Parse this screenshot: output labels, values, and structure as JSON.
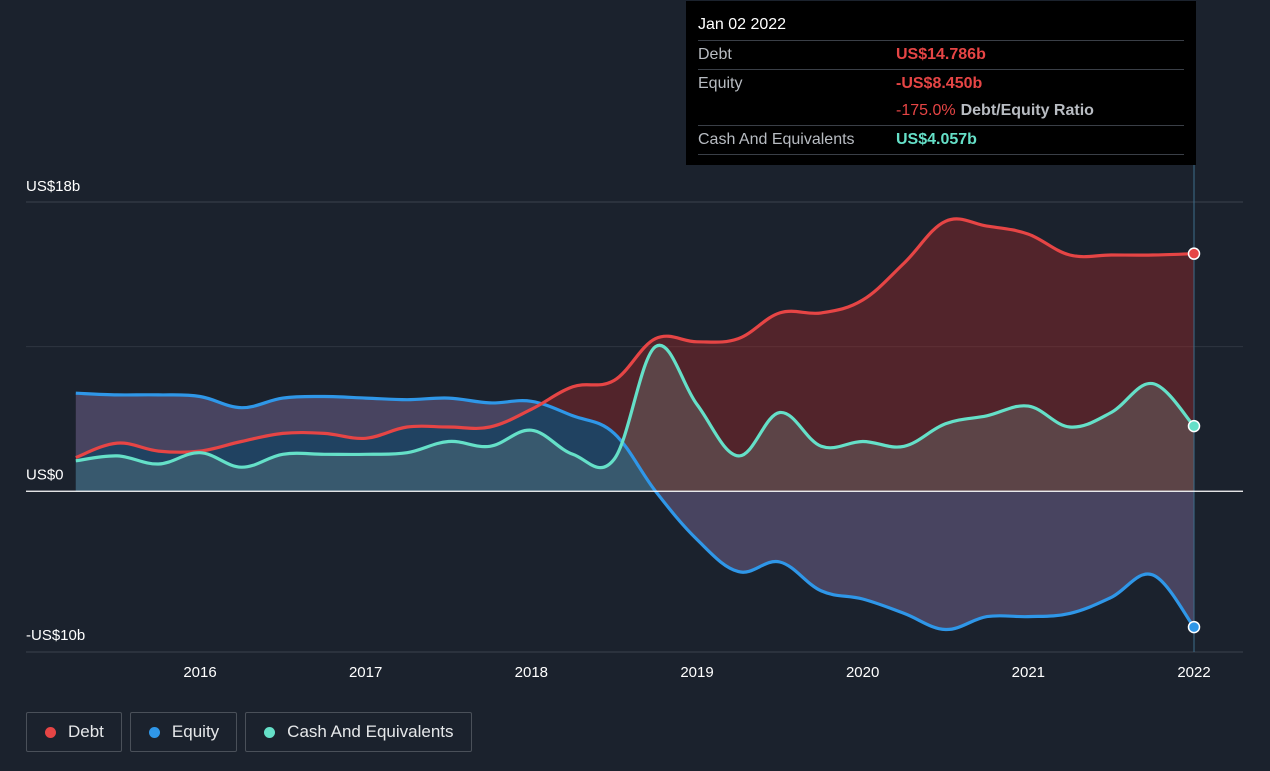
{
  "chart_data": {
    "type": "area",
    "title": "",
    "xlabel": "",
    "ylabel": "",
    "ylim": [
      -10,
      18
    ],
    "y_tick_labels": [
      "US$18b",
      "US$0",
      "-US$10b"
    ],
    "x_tick_labels": [
      "2016",
      "2017",
      "2018",
      "2019",
      "2020",
      "2021",
      "2022"
    ],
    "x_ticks": [
      2016,
      2017,
      2018,
      2019,
      2020,
      2021,
      2022
    ],
    "grid": true,
    "legend_position": "bottom-left",
    "series": [
      {
        "name": "Debt",
        "color": "#e64545",
        "x": [
          2015.25,
          2015.5,
          2015.75,
          2016.0,
          2016.25,
          2016.5,
          2016.75,
          2017.0,
          2017.25,
          2017.5,
          2017.75,
          2018.0,
          2018.25,
          2018.5,
          2018.75,
          2019.0,
          2019.25,
          2019.5,
          2019.75,
          2020.0,
          2020.25,
          2020.5,
          2020.75,
          2021.0,
          2021.25,
          2021.5,
          2021.75,
          2022.0
        ],
        "values": [
          2.1,
          3.0,
          2.5,
          2.5,
          3.1,
          3.6,
          3.6,
          3.3,
          4.0,
          4.0,
          4.0,
          5.1,
          6.5,
          6.9,
          9.5,
          9.3,
          9.5,
          11.1,
          11.1,
          11.9,
          14.2,
          16.8,
          16.5,
          16.0,
          14.7,
          14.7,
          14.7,
          14.786
        ]
      },
      {
        "name": "Equity",
        "color": "#2f97e8",
        "x": [
          2015.25,
          2015.5,
          2015.75,
          2016.0,
          2016.25,
          2016.5,
          2016.75,
          2017.0,
          2017.25,
          2017.5,
          2017.75,
          2018.0,
          2018.25,
          2018.5,
          2018.75,
          2019.0,
          2019.25,
          2019.5,
          2019.75,
          2020.0,
          2020.25,
          2020.5,
          2020.75,
          2021.0,
          2021.25,
          2021.5,
          2021.75,
          2022.0
        ],
        "values": [
          6.1,
          6.0,
          6.0,
          5.9,
          5.2,
          5.8,
          5.9,
          5.8,
          5.7,
          5.8,
          5.5,
          5.6,
          4.7,
          3.6,
          0.0,
          -3.0,
          -5.0,
          -4.4,
          -6.2,
          -6.7,
          -7.6,
          -8.6,
          -7.8,
          -7.8,
          -7.6,
          -6.6,
          -5.2,
          -8.45
        ]
      },
      {
        "name": "Cash And Equivalents",
        "color": "#65e0c8",
        "x": [
          2015.25,
          2015.5,
          2015.75,
          2016.0,
          2016.25,
          2016.5,
          2016.75,
          2017.0,
          2017.25,
          2017.5,
          2017.75,
          2018.0,
          2018.25,
          2018.5,
          2018.75,
          2019.0,
          2019.25,
          2019.5,
          2019.75,
          2020.0,
          2020.25,
          2020.5,
          2020.75,
          2021.0,
          2021.25,
          2021.5,
          2021.75,
          2022.0
        ],
        "values": [
          1.9,
          2.2,
          1.7,
          2.4,
          1.5,
          2.3,
          2.3,
          2.3,
          2.4,
          3.1,
          2.8,
          3.8,
          2.3,
          2.0,
          9.0,
          5.4,
          2.2,
          4.9,
          2.8,
          3.1,
          2.8,
          4.2,
          4.7,
          5.3,
          4.0,
          4.9,
          6.7,
          4.057
        ]
      }
    ],
    "tooltip": {
      "date": "Jan 02 2022",
      "debt_label": "Debt",
      "debt_value": "US$14.786b",
      "equity_label": "Equity",
      "equity_value": "-US$8.450b",
      "ratio_value": "-175.0%",
      "ratio_label": "Debt/Equity Ratio",
      "cash_label": "Cash And Equivalents",
      "cash_value": "US$4.057b"
    },
    "legend": [
      "Debt",
      "Equity",
      "Cash And Equivalents"
    ]
  },
  "colors": {
    "background": "#1b222d",
    "debt": "#e64545",
    "equity": "#2f97e8",
    "cash": "#65e0c8",
    "tooltip_neg": "#e64545",
    "tooltip_cash": "#65e0c8"
  }
}
